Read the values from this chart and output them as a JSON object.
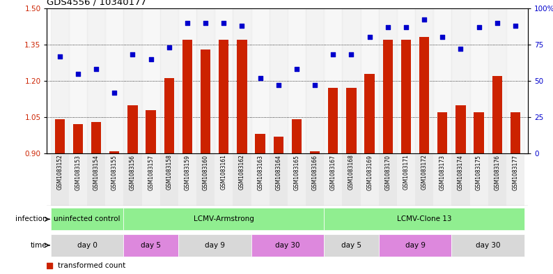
{
  "title": "GDS4556 / 10340177",
  "samples": [
    "GSM1083152",
    "GSM1083153",
    "GSM1083154",
    "GSM1083155",
    "GSM1083156",
    "GSM1083157",
    "GSM1083158",
    "GSM1083159",
    "GSM1083160",
    "GSM1083161",
    "GSM1083162",
    "GSM1083163",
    "GSM1083164",
    "GSM1083165",
    "GSM1083166",
    "GSM1083167",
    "GSM1083168",
    "GSM1083169",
    "GSM1083170",
    "GSM1083171",
    "GSM1083172",
    "GSM1083173",
    "GSM1083174",
    "GSM1083175",
    "GSM1083176",
    "GSM1083177"
  ],
  "bar_values": [
    1.04,
    1.02,
    1.03,
    0.91,
    1.1,
    1.08,
    1.21,
    1.37,
    1.33,
    1.37,
    1.37,
    0.98,
    0.97,
    1.04,
    0.91,
    1.17,
    1.17,
    1.23,
    1.37,
    1.37,
    1.38,
    1.07,
    1.1,
    1.07,
    1.22,
    1.07
  ],
  "scatter_values": [
    67,
    55,
    58,
    42,
    68,
    65,
    73,
    90,
    90,
    90,
    88,
    52,
    47,
    58,
    47,
    68,
    68,
    80,
    87,
    87,
    92,
    80,
    72,
    87,
    90,
    88
  ],
  "ylim_left": [
    0.9,
    1.5
  ],
  "ylim_right": [
    0,
    100
  ],
  "yticks_left": [
    0.9,
    1.05,
    1.2,
    1.35,
    1.5
  ],
  "yticks_right": [
    0,
    25,
    50,
    75,
    100
  ],
  "ytick_labels_right": [
    "0",
    "25",
    "50",
    "75",
    "100%"
  ],
  "bar_color": "#cc2200",
  "scatter_color": "#0000cc",
  "infection_groups": [
    {
      "label": "uninfected control",
      "start": 0,
      "end": 3,
      "color": "#90ee90"
    },
    {
      "label": "LCMV-Armstrong",
      "start": 4,
      "end": 14,
      "color": "#90ee90"
    },
    {
      "label": "LCMV-Clone 13",
      "start": 15,
      "end": 25,
      "color": "#90ee90"
    }
  ],
  "time_groups": [
    {
      "label": "day 0",
      "start": 0,
      "end": 3,
      "color": "#d8d8d8"
    },
    {
      "label": "day 5",
      "start": 4,
      "end": 6,
      "color": "#dd88dd"
    },
    {
      "label": "day 9",
      "start": 7,
      "end": 10,
      "color": "#d8d8d8"
    },
    {
      "label": "day 30",
      "start": 11,
      "end": 14,
      "color": "#dd88dd"
    },
    {
      "label": "day 5",
      "start": 15,
      "end": 17,
      "color": "#d8d8d8"
    },
    {
      "label": "day 9",
      "start": 18,
      "end": 21,
      "color": "#dd88dd"
    },
    {
      "label": "day 30",
      "start": 22,
      "end": 25,
      "color": "#d8d8d8"
    }
  ]
}
